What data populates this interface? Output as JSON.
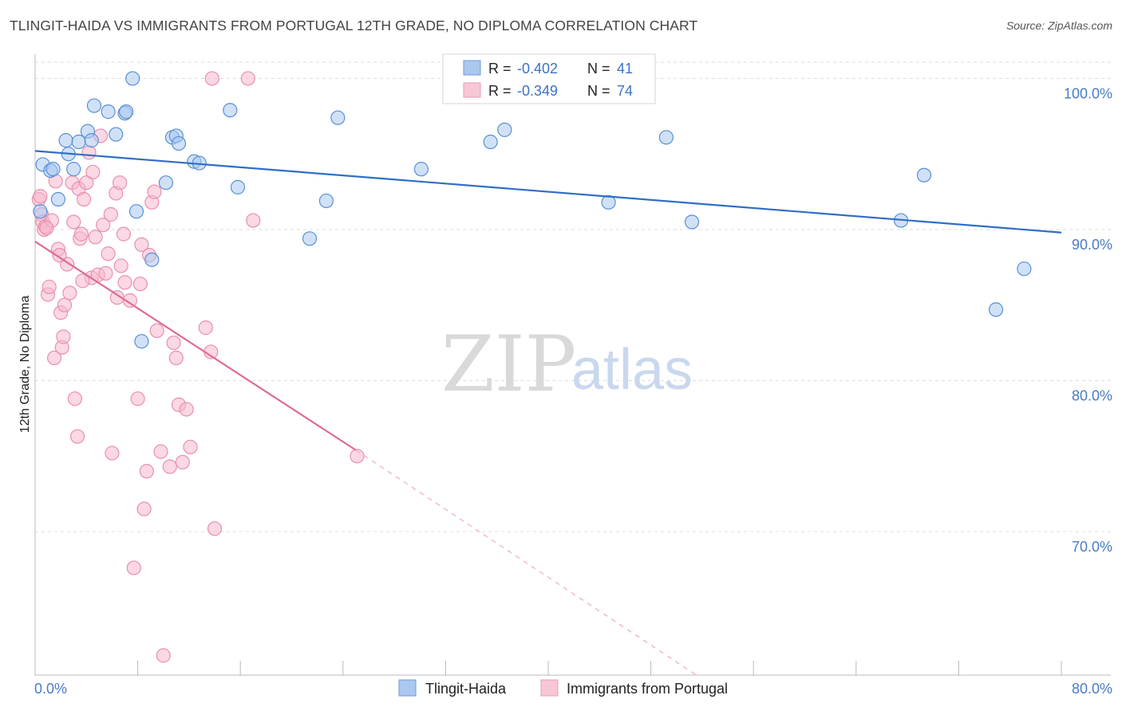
{
  "header": {
    "title": "TLINGIT-HAIDA VS IMMIGRANTS FROM PORTUGAL 12TH GRADE, NO DIPLOMA CORRELATION CHART",
    "source": "Source: ZipAtlas.com"
  },
  "watermark": {
    "zip": "ZIP",
    "atlas": "atlas"
  },
  "colors": {
    "blue": "#4a7cc4",
    "blue_fill": "#aac8f0",
    "blue_line": "#2f6fc4",
    "pink_fill": "#f7b8cc",
    "pink_line": "#e06a96",
    "grid": "#dddddd"
  },
  "legend": {
    "rows": [
      {
        "r_label": "R = ",
        "r_value": "-0.402",
        "n_label": "N = ",
        "n_value": "41"
      },
      {
        "r_label": "R = ",
        "r_value": "-0.349",
        "n_label": "N = ",
        "n_value": "74"
      }
    ]
  },
  "bottom_legend": [
    "Tlingit-Haida",
    "Immigrants from Portugal"
  ],
  "chart_data": {
    "type": "scatter",
    "title": "TLINGIT-HAIDA VS IMMIGRANTS FROM PORTUGAL 12TH GRADE, NO DIPLOMA CORRELATION CHART",
    "xlabel": "",
    "ylabel": "12th Grade, No Diploma",
    "xlim": [
      0,
      80
    ],
    "ylim": [
      60.5,
      101.5
    ],
    "x_tick_labels": [
      "0.0%",
      "80.0%"
    ],
    "y_ticks": [
      70,
      80,
      90,
      100
    ],
    "y_tick_labels": [
      "70.0%",
      "80.0%",
      "90.0%",
      "100.0%"
    ],
    "grid": true,
    "legend_position": "top-center",
    "series": [
      {
        "name": "Tlingit-Haida",
        "color": "#aac8f0",
        "points": [
          [
            0.4,
            91.2
          ],
          [
            0.6,
            94.3
          ],
          [
            1.2,
            93.9
          ],
          [
            1.4,
            94.0
          ],
          [
            1.8,
            92.0
          ],
          [
            2.4,
            95.9
          ],
          [
            2.6,
            95.0
          ],
          [
            3.0,
            94.0
          ],
          [
            3.4,
            95.8
          ],
          [
            4.1,
            96.5
          ],
          [
            4.4,
            95.9
          ],
          [
            4.6,
            98.2
          ],
          [
            5.7,
            97.8
          ],
          [
            6.3,
            96.3
          ],
          [
            7.0,
            97.7
          ],
          [
            7.1,
            97.8
          ],
          [
            7.6,
            100.0
          ],
          [
            7.9,
            91.2
          ],
          [
            8.3,
            82.6
          ],
          [
            9.1,
            88.0
          ],
          [
            10.2,
            93.1
          ],
          [
            10.7,
            96.1
          ],
          [
            11.0,
            96.2
          ],
          [
            11.2,
            95.7
          ],
          [
            12.4,
            94.5
          ],
          [
            12.8,
            94.4
          ],
          [
            15.2,
            97.9
          ],
          [
            15.8,
            92.8
          ],
          [
            21.4,
            89.4
          ],
          [
            22.7,
            91.9
          ],
          [
            23.6,
            97.4
          ],
          [
            30.1,
            94.0
          ],
          [
            35.5,
            95.8
          ],
          [
            36.6,
            96.6
          ],
          [
            44.7,
            91.8
          ],
          [
            49.2,
            96.1
          ],
          [
            51.2,
            90.5
          ],
          [
            67.5,
            90.6
          ],
          [
            69.3,
            93.6
          ],
          [
            74.9,
            84.7
          ],
          [
            77.1,
            87.4
          ]
        ],
        "trend": {
          "x": [
            0.0,
            80.0
          ],
          "y": [
            95.2,
            89.8
          ],
          "style": "solid"
        }
      },
      {
        "name": "Immigrants from Portugal",
        "color": "#f7b8cc",
        "points": [
          [
            0.3,
            92.0
          ],
          [
            0.4,
            92.2
          ],
          [
            0.5,
            91.0
          ],
          [
            0.6,
            90.5
          ],
          [
            0.7,
            90.0
          ],
          [
            0.8,
            90.2
          ],
          [
            1.0,
            85.7
          ],
          [
            1.1,
            86.2
          ],
          [
            1.3,
            90.6
          ],
          [
            1.5,
            81.5
          ],
          [
            1.6,
            93.2
          ],
          [
            1.8,
            88.7
          ],
          [
            2.0,
            84.5
          ],
          [
            2.1,
            82.2
          ],
          [
            2.2,
            82.9
          ],
          [
            2.3,
            85.0
          ],
          [
            2.5,
            87.7
          ],
          [
            2.7,
            85.8
          ],
          [
            2.9,
            93.1
          ],
          [
            3.0,
            90.5
          ],
          [
            3.1,
            78.8
          ],
          [
            3.3,
            76.3
          ],
          [
            3.4,
            92.7
          ],
          [
            3.5,
            89.4
          ],
          [
            3.6,
            89.7
          ],
          [
            3.8,
            92.0
          ],
          [
            4.0,
            93.1
          ],
          [
            4.2,
            95.1
          ],
          [
            4.4,
            86.8
          ],
          [
            4.5,
            93.8
          ],
          [
            4.7,
            89.5
          ],
          [
            4.9,
            87.0
          ],
          [
            5.1,
            96.2
          ],
          [
            5.3,
            90.3
          ],
          [
            5.5,
            87.1
          ],
          [
            5.9,
            91.0
          ],
          [
            6.0,
            75.2
          ],
          [
            6.3,
            92.4
          ],
          [
            6.4,
            85.5
          ],
          [
            6.6,
            93.1
          ],
          [
            6.7,
            87.6
          ],
          [
            6.9,
            89.7
          ],
          [
            7.0,
            86.5
          ],
          [
            7.4,
            85.3
          ],
          [
            7.7,
            67.6
          ],
          [
            8.0,
            78.8
          ],
          [
            8.2,
            86.4
          ],
          [
            8.3,
            89.0
          ],
          [
            8.5,
            71.5
          ],
          [
            8.7,
            74.0
          ],
          [
            8.9,
            88.3
          ],
          [
            9.1,
            91.8
          ],
          [
            9.3,
            92.5
          ],
          [
            9.5,
            83.3
          ],
          [
            9.8,
            75.3
          ],
          [
            10.0,
            61.8
          ],
          [
            10.5,
            74.3
          ],
          [
            10.8,
            82.5
          ],
          [
            11.0,
            81.5
          ],
          [
            11.2,
            78.4
          ],
          [
            11.5,
            74.6
          ],
          [
            11.8,
            78.1
          ],
          [
            12.1,
            75.6
          ],
          [
            13.3,
            83.5
          ],
          [
            13.7,
            81.9
          ],
          [
            13.8,
            100.0
          ],
          [
            14.0,
            70.2
          ],
          [
            16.6,
            100.0
          ],
          [
            17.0,
            90.6
          ],
          [
            25.1,
            75.0
          ],
          [
            0.9,
            90.1
          ],
          [
            1.9,
            88.3
          ],
          [
            3.7,
            86.6
          ],
          [
            5.7,
            88.4
          ]
        ],
        "trend": {
          "x": [
            0.0,
            25.0
          ],
          "y": [
            89.2,
            75.4
          ],
          "style": "solid",
          "extension": {
            "x": [
              25.0,
              56.0
            ],
            "y": [
              75.4,
              58.0
            ],
            "style": "dashed"
          }
        }
      }
    ]
  }
}
